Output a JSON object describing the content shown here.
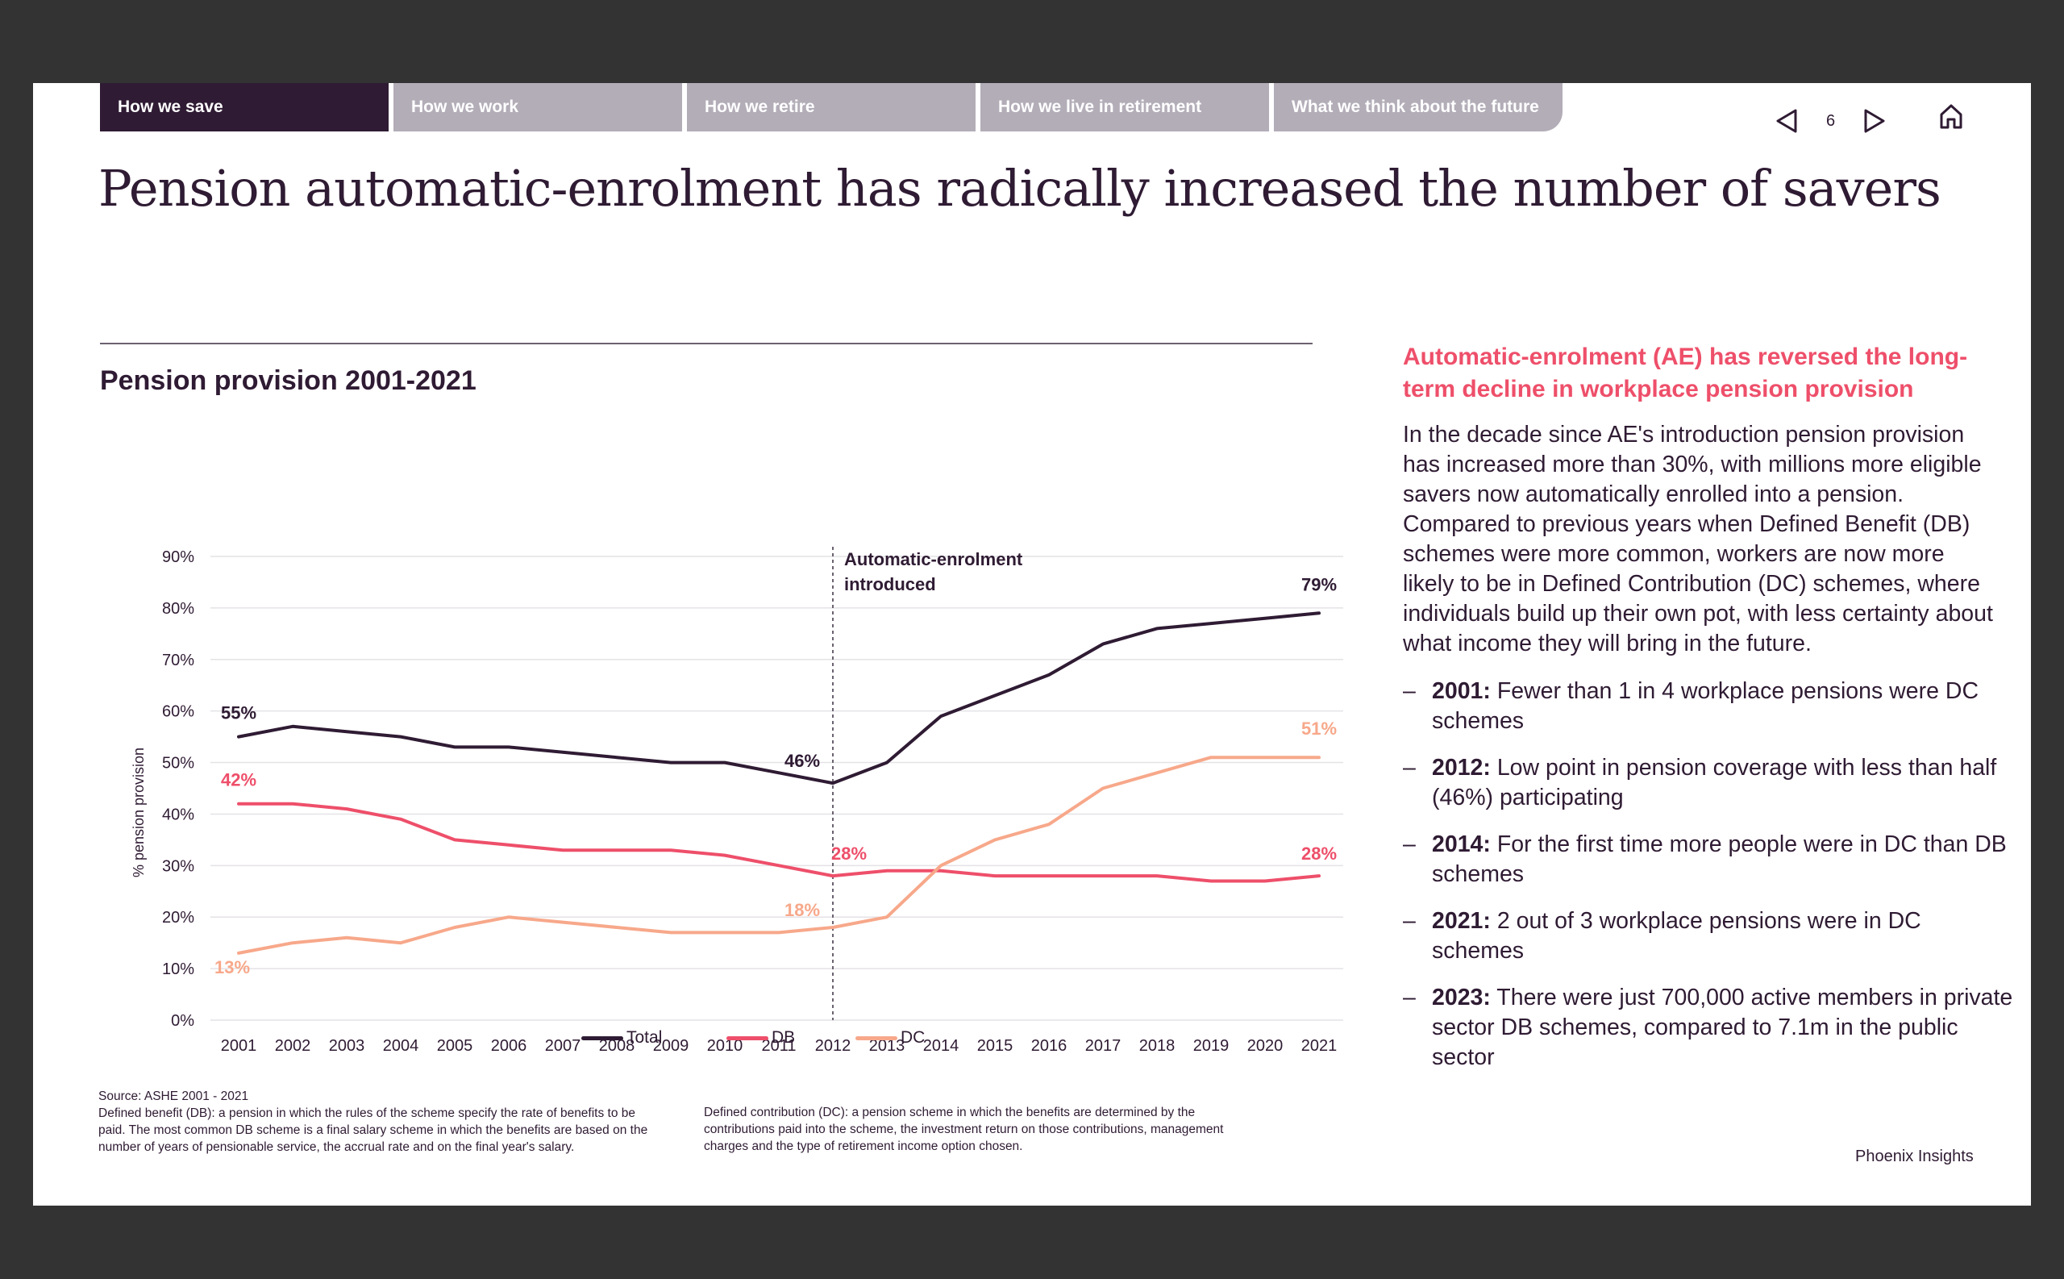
{
  "tabs": [
    {
      "label": "How we save",
      "active": true
    },
    {
      "label": "How we work",
      "active": false
    },
    {
      "label": "How we retire",
      "active": false
    },
    {
      "label": "How we live in retirement",
      "active": false
    },
    {
      "label": "What we think about the future",
      "active": false
    }
  ],
  "pager": {
    "page": "6",
    "prev_icon": "triangle-left-icon",
    "next_icon": "triangle-right-icon",
    "home_icon": "home-icon"
  },
  "title": "Pension automatic-enrolment has radically increased the number of savers",
  "chart_title": "Pension provision 2001-2021",
  "chart_data": {
    "type": "line",
    "title": "Pension provision 2001-2021",
    "xlabel": "",
    "ylabel": "% pension provision",
    "ylim": [
      0,
      90
    ],
    "yticks": [
      "0%",
      "10%",
      "20%",
      "30%",
      "40%",
      "50%",
      "60%",
      "70%",
      "80%",
      "90%"
    ],
    "x": [
      "2001",
      "2002",
      "2003",
      "2004",
      "2005",
      "2006",
      "2007",
      "2008",
      "2009",
      "2010",
      "2011",
      "2012",
      "2013",
      "2014",
      "2015",
      "2016",
      "2017",
      "2018",
      "2019",
      "2020",
      "2021"
    ],
    "series": [
      {
        "name": "Total",
        "color": "#2f1b33",
        "values": [
          55,
          57,
          56,
          55,
          53,
          53,
          52,
          51,
          50,
          50,
          48,
          46,
          50,
          59,
          63,
          67,
          73,
          76,
          77,
          78,
          79
        ]
      },
      {
        "name": "DB",
        "color": "#ee4f6a",
        "values": [
          42,
          42,
          41,
          39,
          35,
          34,
          33,
          33,
          33,
          32,
          30,
          28,
          29,
          29,
          28,
          28,
          28,
          28,
          27,
          27,
          28
        ]
      },
      {
        "name": "DC",
        "color": "#f7a88a",
        "values": [
          13,
          15,
          16,
          15,
          18,
          20,
          19,
          18,
          17,
          17,
          17,
          18,
          20,
          30,
          35,
          38,
          45,
          48,
          51,
          51,
          51
        ]
      }
    ],
    "data_labels": [
      {
        "series": "Total",
        "x": "2001",
        "text": "55%"
      },
      {
        "series": "Total",
        "x": "2012",
        "text": "46%"
      },
      {
        "series": "Total",
        "x": "2021",
        "text": "79%"
      },
      {
        "series": "DB",
        "x": "2001",
        "text": "42%"
      },
      {
        "series": "DB",
        "x": "2012",
        "text": "28%"
      },
      {
        "series": "DB",
        "x": "2021",
        "text": "28%"
      },
      {
        "series": "DC",
        "x": "2001",
        "text": "13%"
      },
      {
        "series": "DC",
        "x": "2012",
        "text": "18%"
      },
      {
        "series": "DC",
        "x": "2021",
        "text": "51%"
      }
    ],
    "annotation": {
      "x": "2012",
      "line1": "Automatic-enrolment",
      "line2": "introduced"
    },
    "legend": [
      "Total",
      "DB",
      "DC"
    ]
  },
  "source": "Source: ASHE 2001  -  2021",
  "db_definition": "Defined benefit (DB): a pension in which the rules of the scheme specify the rate of benefits to be paid. The most common DB scheme is a final salary scheme in which the benefits are based on the number of years of pensionable service, the accrual rate and on the final year's salary.",
  "dc_definition": "Defined contribution (DC): a pension scheme in which the benefits are determined  by the contributions paid into the scheme, the investment return on those  contributions, management charges and the type of retirement income option chosen.",
  "brand": "Phoenix Insights",
  "side": {
    "heading": "Automatic-enrolment (AE) has reversed the long-term decline in workplace pension provision",
    "body": "In the decade since AE's introduction pension provision has increased more than 30%, with millions more eligible savers now automatically enrolled into a pension. Compared to previous years when Defined Benefit (DB) schemes were more common, workers are now more likely to be in Defined Contribution (DC) schemes, where individuals build up their own pot, with less certainty about what income they will bring in the future.",
    "bullets": [
      {
        "year": "2001:",
        "text": " Fewer than 1 in 4 workplace pensions were DC schemes"
      },
      {
        "year": "2012:",
        "text": " Low point in pension coverage with less than half (46%) participating"
      },
      {
        "year": "2014:",
        "text": " For the first time more people were in DC than DB schemes"
      },
      {
        "year": "2021:",
        "text": " 2 out of 3 workplace pensions were in DC schemes"
      },
      {
        "year": "2023:",
        "text": " There were just 700,000 active members in private sector DB schemes, compared to 7.1m in the public sector"
      }
    ]
  }
}
